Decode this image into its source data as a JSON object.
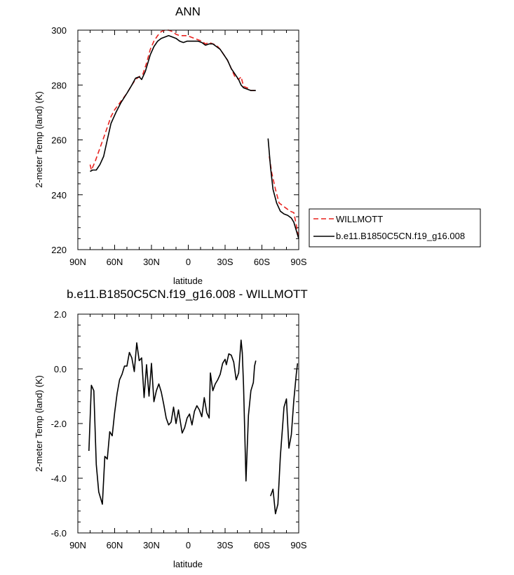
{
  "chart_data": [
    {
      "type": "line",
      "title": "ANN",
      "xlabel": "latitude",
      "ylabel": "2-meter Temp (land) (K)",
      "xlim": [
        90,
        -90
      ],
      "ylim": [
        220,
        300
      ],
      "x_ticks": [
        90,
        60,
        30,
        0,
        -30,
        -60,
        -90
      ],
      "x_tick_labels": [
        "90N",
        "60N",
        "30N",
        "0",
        "30S",
        "60S",
        "90S"
      ],
      "y_ticks": [
        220,
        240,
        260,
        280,
        300
      ],
      "y_tick_labels": [
        "220",
        "240",
        "260",
        "280",
        "300"
      ],
      "grid": false,
      "legend_position": "right",
      "series": [
        {
          "name": "WILLMOTT",
          "color": "#e8231f",
          "dash": true,
          "segments": [
            [
              [
                80,
                251
              ],
              [
                79,
                249
              ],
              [
                76,
                252
              ],
              [
                72,
                257
              ],
              [
                68,
                262
              ],
              [
                63,
                268.5
              ],
              [
                60,
                271
              ],
              [
                55,
                274
              ],
              [
                50,
                277
              ],
              [
                46,
                280
              ],
              [
                43,
                282
              ],
              [
                40,
                283
              ],
              [
                37,
                284
              ],
              [
                34,
                288
              ],
              [
                31,
                293
              ],
              [
                28,
                296
              ],
              [
                25,
                298
              ],
              [
                22,
                299.5
              ],
              [
                19,
                300
              ],
              [
                16,
                300
              ],
              [
                13,
                299.5
              ],
              [
                10,
                298.5
              ],
              [
                7,
                298
              ],
              [
                4,
                298
              ],
              [
                1,
                298
              ],
              [
                -2,
                297.5
              ],
              [
                -5,
                297
              ],
              [
                -8,
                296.5
              ],
              [
                -11,
                296
              ],
              [
                -14,
                295
              ],
              [
                -17,
                295.5
              ],
              [
                -20,
                295
              ],
              [
                -23,
                294.5
              ],
              [
                -26,
                293
              ],
              [
                -29,
                291
              ],
              [
                -32,
                289
              ],
              [
                -35,
                286
              ],
              [
                -38,
                283
              ],
              [
                -41,
                282
              ],
              [
                -43,
                283
              ],
              [
                -45,
                279.5
              ],
              [
                -48,
                279
              ],
              [
                -51,
                278
              ],
              [
                -55,
                278
              ]
            ],
            [
              [
                -66,
                254
              ],
              [
                -68,
                248
              ],
              [
                -71,
                242
              ],
              [
                -74,
                237
              ],
              [
                -77,
                236
              ],
              [
                -80,
                235
              ],
              [
                -83,
                234
              ],
              [
                -86,
                233.5
              ],
              [
                -88,
                229
              ],
              [
                -90,
                224
              ]
            ]
          ]
        },
        {
          "name": "b.e11.B1850C5CN.f19_g16.008",
          "color": "#000000",
          "dash": false,
          "segments": [
            [
              [
                80,
                248.5
              ],
              [
                78,
                249
              ],
              [
                75,
                249
              ],
              [
                72,
                251
              ],
              [
                69,
                254
              ],
              [
                66,
                260
              ],
              [
                63,
                266
              ],
              [
                59,
                270
              ],
              [
                55,
                273.5
              ],
              [
                50,
                277
              ],
              [
                46,
                280
              ],
              [
                43,
                282.5
              ],
              [
                40,
                283
              ],
              [
                38,
                282
              ],
              [
                35,
                285
              ],
              [
                31,
                291
              ],
              [
                28,
                294
              ],
              [
                25,
                296
              ],
              [
                22,
                297
              ],
              [
                19,
                297.5
              ],
              [
                16,
                298
              ],
              [
                13,
                297.5
              ],
              [
                10,
                297
              ],
              [
                7,
                296
              ],
              [
                4,
                295.5
              ],
              [
                1,
                296
              ],
              [
                -2,
                296
              ],
              [
                -5,
                296
              ],
              [
                -8,
                296
              ],
              [
                -11,
                295.5
              ],
              [
                -14,
                294.5
              ],
              [
                -17,
                295
              ],
              [
                -20,
                295
              ],
              [
                -23,
                294
              ],
              [
                -26,
                293
              ],
              [
                -29,
                291
              ],
              [
                -32,
                289
              ],
              [
                -35,
                286
              ],
              [
                -38,
                284
              ],
              [
                -41,
                282
              ],
              [
                -43,
                280
              ],
              [
                -45,
                279
              ],
              [
                -48,
                278.5
              ],
              [
                -51,
                278
              ],
              [
                -55,
                278
              ]
            ],
            [
              [
                -65,
                260.5
              ],
              [
                -67,
                250
              ],
              [
                -69,
                242
              ],
              [
                -72,
                237
              ],
              [
                -75,
                234
              ],
              [
                -78,
                233
              ],
              [
                -81,
                232.5
              ],
              [
                -84,
                231.5
              ],
              [
                -86,
                230
              ],
              [
                -88,
                227
              ],
              [
                -90,
                224
              ]
            ]
          ]
        }
      ]
    },
    {
      "type": "line",
      "title": "b.e11.B1850C5CN.f19_g16.008 - WILLMOTT",
      "xlabel": "latitude",
      "ylabel": "2-meter Temp (land) (K)",
      "xlim": [
        90,
        -90
      ],
      "ylim": [
        -6,
        2
      ],
      "x_ticks": [
        90,
        60,
        30,
        0,
        -30,
        -60,
        -90
      ],
      "x_tick_labels": [
        "90N",
        "60N",
        "30N",
        "0",
        "30S",
        "60S",
        "90S"
      ],
      "y_ticks": [
        -6,
        -4,
        -2,
        0,
        2
      ],
      "y_tick_labels": [
        "-6.0",
        "-4.0",
        "-2.0",
        "0.0",
        "2.0"
      ],
      "grid": false,
      "series": [
        {
          "color": "#000000",
          "dash": false,
          "segments": [
            [
              [
                81,
                -3.0
              ],
              [
                79,
                -0.6
              ],
              [
                77,
                -0.8
              ],
              [
                75,
                -3.5
              ],
              [
                73,
                -4.5
              ],
              [
                70,
                -4.95
              ],
              [
                68,
                -3.2
              ],
              [
                66,
                -3.3
              ],
              [
                64,
                -2.3
              ],
              [
                62,
                -2.45
              ],
              [
                60,
                -1.6
              ],
              [
                58,
                -0.9
              ],
              [
                56,
                -0.4
              ],
              [
                54,
                -0.2
              ],
              [
                52,
                0.1
              ],
              [
                50,
                0.1
              ],
              [
                48,
                0.6
              ],
              [
                46,
                0.4
              ],
              [
                44,
                -0.1
              ],
              [
                42,
                0.95
              ],
              [
                40,
                0.3
              ],
              [
                38,
                0.4
              ],
              [
                36,
                -1.05
              ],
              [
                34,
                0.15
              ],
              [
                32,
                -1.0
              ],
              [
                30,
                0.2
              ],
              [
                28,
                -1.2
              ],
              [
                26,
                -0.8
              ],
              [
                24,
                -0.55
              ],
              [
                22,
                -0.85
              ],
              [
                20,
                -1.3
              ],
              [
                18,
                -1.8
              ],
              [
                16,
                -2.05
              ],
              [
                14,
                -1.95
              ],
              [
                12,
                -1.4
              ],
              [
                10,
                -2.0
              ],
              [
                8,
                -1.5
              ],
              [
                5,
                -2.35
              ],
              [
                3,
                -2.15
              ],
              [
                1,
                -1.8
              ],
              [
                -1,
                -1.65
              ],
              [
                -3,
                -2.05
              ],
              [
                -5,
                -1.55
              ],
              [
                -7,
                -1.35
              ],
              [
                -9,
                -1.5
              ],
              [
                -11,
                -1.75
              ],
              [
                -13,
                -1.05
              ],
              [
                -15,
                -1.6
              ],
              [
                -17,
                -1.8
              ],
              [
                -18,
                -0.15
              ],
              [
                -20,
                -0.8
              ],
              [
                -22,
                -0.55
              ],
              [
                -24,
                -0.4
              ],
              [
                -26,
                -0.2
              ],
              [
                -28,
                0.2
              ],
              [
                -30,
                0.35
              ],
              [
                -31,
                0.15
              ],
              [
                -33,
                0.55
              ],
              [
                -35,
                0.5
              ],
              [
                -37,
                0.25
              ],
              [
                -39,
                -0.4
              ],
              [
                -41,
                -0.15
              ],
              [
                -43,
                1.05
              ],
              [
                -44,
                0.6
              ],
              [
                -45,
                -0.6
              ],
              [
                -47,
                -4.1
              ],
              [
                -49,
                -1.7
              ],
              [
                -51,
                -0.8
              ],
              [
                -53,
                -0.5
              ],
              [
                -54,
                0.1
              ],
              [
                -55,
                0.3
              ]
            ],
            [
              [
                -67,
                -4.65
              ],
              [
                -69,
                -4.4
              ],
              [
                -71,
                -5.3
              ],
              [
                -73,
                -4.95
              ],
              [
                -75,
                -3.2
              ],
              [
                -77,
                -2.0
              ],
              [
                -78,
                -1.4
              ],
              [
                -80,
                -1.1
              ],
              [
                -82,
                -2.9
              ],
              [
                -84,
                -2.4
              ],
              [
                -86,
                -1.15
              ],
              [
                -88,
                -0.2
              ],
              [
                -89,
                0.2
              ]
            ]
          ]
        }
      ]
    }
  ]
}
